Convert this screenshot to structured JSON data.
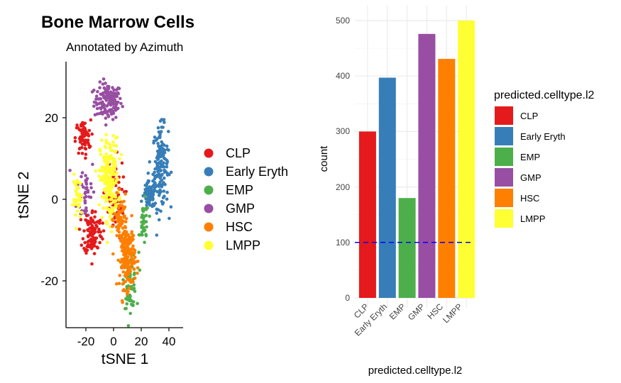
{
  "chart_data": [
    {
      "type": "scatter",
      "title": "Bone Marrow Cells",
      "subtitle": "Annotated by Azimuth",
      "xlabel": "tSNE 1",
      "ylabel": "tSNE 2",
      "xlim": [
        -33,
        48
      ],
      "ylim": [
        -31,
        33
      ],
      "xticks": [
        "-20",
        "0",
        "20",
        "40"
      ],
      "yticks": [
        "-20",
        "0",
        "20"
      ],
      "grid": false,
      "legend_position": "right",
      "legend": [
        "CLP",
        "Early Eryth",
        "EMP",
        "GMP",
        "HSC",
        "LMPP"
      ],
      "colors": {
        "CLP": "#E41A1C",
        "Early Eryth": "#377EB8",
        "EMP": "#4DAF4A",
        "GMP": "#984EA3",
        "HSC": "#FF7F00",
        "LMPP": "#FFFF33"
      },
      "clusters": [
        {
          "name": "GMP",
          "cx": -4,
          "cy": 24,
          "sx": 9,
          "sy": 4,
          "n": 140
        },
        {
          "name": "GMP",
          "cx": -20,
          "cy": 2,
          "sx": 6,
          "sy": 8,
          "n": 40
        },
        {
          "name": "Early Eryth",
          "cx": 34,
          "cy": 8,
          "sx": 5,
          "sy": 9,
          "n": 160
        },
        {
          "name": "Early Eryth",
          "cx": 26,
          "cy": 1,
          "sx": 4,
          "sy": 3,
          "n": 80
        },
        {
          "name": "EMP",
          "cx": 22,
          "cy": -6,
          "sx": 3,
          "sy": 5,
          "n": 40
        },
        {
          "name": "EMP",
          "cx": 12,
          "cy": -20,
          "sx": 4,
          "sy": 6,
          "n": 80
        },
        {
          "name": "CLP",
          "cx": -22,
          "cy": 15,
          "sx": 5,
          "sy": 4,
          "n": 70
        },
        {
          "name": "CLP",
          "cx": -15,
          "cy": -8,
          "sx": 6,
          "sy": 5,
          "n": 120
        },
        {
          "name": "CLP",
          "cx": 0,
          "cy": 0,
          "sx": 7,
          "sy": 9,
          "n": 60
        },
        {
          "name": "LMPP",
          "cx": -3,
          "cy": 5,
          "sx": 6,
          "sy": 9,
          "n": 220
        },
        {
          "name": "LMPP",
          "cx": -26,
          "cy": 0,
          "sx": 3,
          "sy": 5,
          "n": 40
        },
        {
          "name": "HSC",
          "cx": 10,
          "cy": -14,
          "sx": 5,
          "sy": 7,
          "n": 180
        },
        {
          "name": "HSC",
          "cx": 5,
          "cy": -5,
          "sx": 4,
          "sy": 5,
          "n": 60
        }
      ]
    },
    {
      "type": "bar",
      "xlabel": "predicted.celltype.l2",
      "ylabel": "count",
      "categories": [
        "CLP",
        "Early Eryth",
        "EMP",
        "GMP",
        "HSC",
        "LMPP"
      ],
      "values": [
        300,
        397,
        180,
        476,
        431,
        500
      ],
      "colors": [
        "#E41A1C",
        "#377EB8",
        "#4DAF4A",
        "#984EA3",
        "#FF7F00",
        "#FFFF33"
      ],
      "ylim": [
        0,
        520
      ],
      "yticks": [
        "0",
        "100",
        "200",
        "300",
        "400",
        "500"
      ],
      "grid": true,
      "reference_line": {
        "y": 100,
        "color": "#0000FF",
        "style": "dashed"
      },
      "legend_title": "predicted.celltype.l2",
      "legend_position": "right"
    }
  ]
}
